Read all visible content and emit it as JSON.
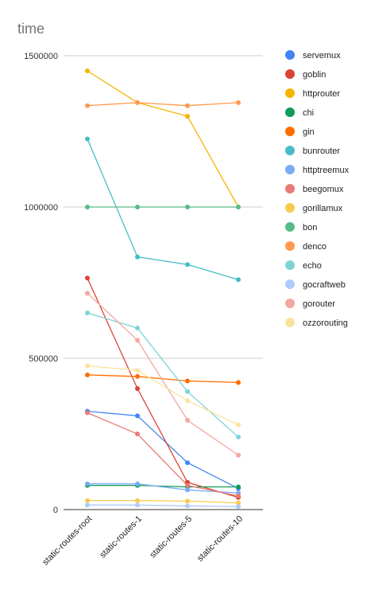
{
  "chart_data": {
    "type": "line",
    "title": "time",
    "xlabel": "",
    "ylabel": "",
    "categories": [
      "static-routes-root",
      "static-routes-1",
      "static-routes-5",
      "static-routes-10"
    ],
    "ylim": [
      0,
      1500000
    ],
    "yticks": [
      0,
      500000,
      1000000,
      1500000
    ],
    "grid": true,
    "legend_position": "right",
    "series": [
      {
        "name": "servemux",
        "color": "#4285f4",
        "values": [
          325000,
          310000,
          155000,
          70000
        ]
      },
      {
        "name": "goblin",
        "color": "#db4437",
        "values": [
          765000,
          400000,
          90000,
          40000
        ]
      },
      {
        "name": "httprouter",
        "color": "#f4b400",
        "values": [
          1450000,
          1345000,
          1300000,
          1000000
        ]
      },
      {
        "name": "chi",
        "color": "#0f9d58",
        "values": [
          80000,
          80000,
          75000,
          75000
        ]
      },
      {
        "name": "gin",
        "color": "#ff6d00",
        "values": [
          445000,
          440000,
          425000,
          420000
        ]
      },
      {
        "name": "bunrouter",
        "color": "#46bdc6",
        "values": [
          1225000,
          835000,
          810000,
          760000
        ]
      },
      {
        "name": "httptreemux",
        "color": "#7baaf7",
        "values": [
          85000,
          85000,
          65000,
          55000
        ]
      },
      {
        "name": "beegomux",
        "color": "#e67c73",
        "values": [
          320000,
          250000,
          80000,
          45000
        ]
      },
      {
        "name": "gorillamux",
        "color": "#f7cb4d",
        "values": [
          30000,
          30000,
          28000,
          22000
        ]
      },
      {
        "name": "bon",
        "color": "#57bb8a",
        "values": [
          1000000,
          1000000,
          1000000,
          1000000
        ]
      },
      {
        "name": "denco",
        "color": "#ff994d",
        "values": [
          1335000,
          1345000,
          1335000,
          1345000
        ]
      },
      {
        "name": "echo",
        "color": "#7dd3d8",
        "values": [
          650000,
          600000,
          390000,
          240000
        ]
      },
      {
        "name": "gocraftweb",
        "color": "#aecbfa",
        "values": [
          15000,
          15000,
          12000,
          10000
        ]
      },
      {
        "name": "gorouter",
        "color": "#f4a7a0",
        "values": [
          715000,
          560000,
          295000,
          180000
        ]
      },
      {
        "name": "ozzorouting",
        "color": "#fce39b",
        "values": [
          475000,
          460000,
          360000,
          280000
        ]
      }
    ]
  }
}
